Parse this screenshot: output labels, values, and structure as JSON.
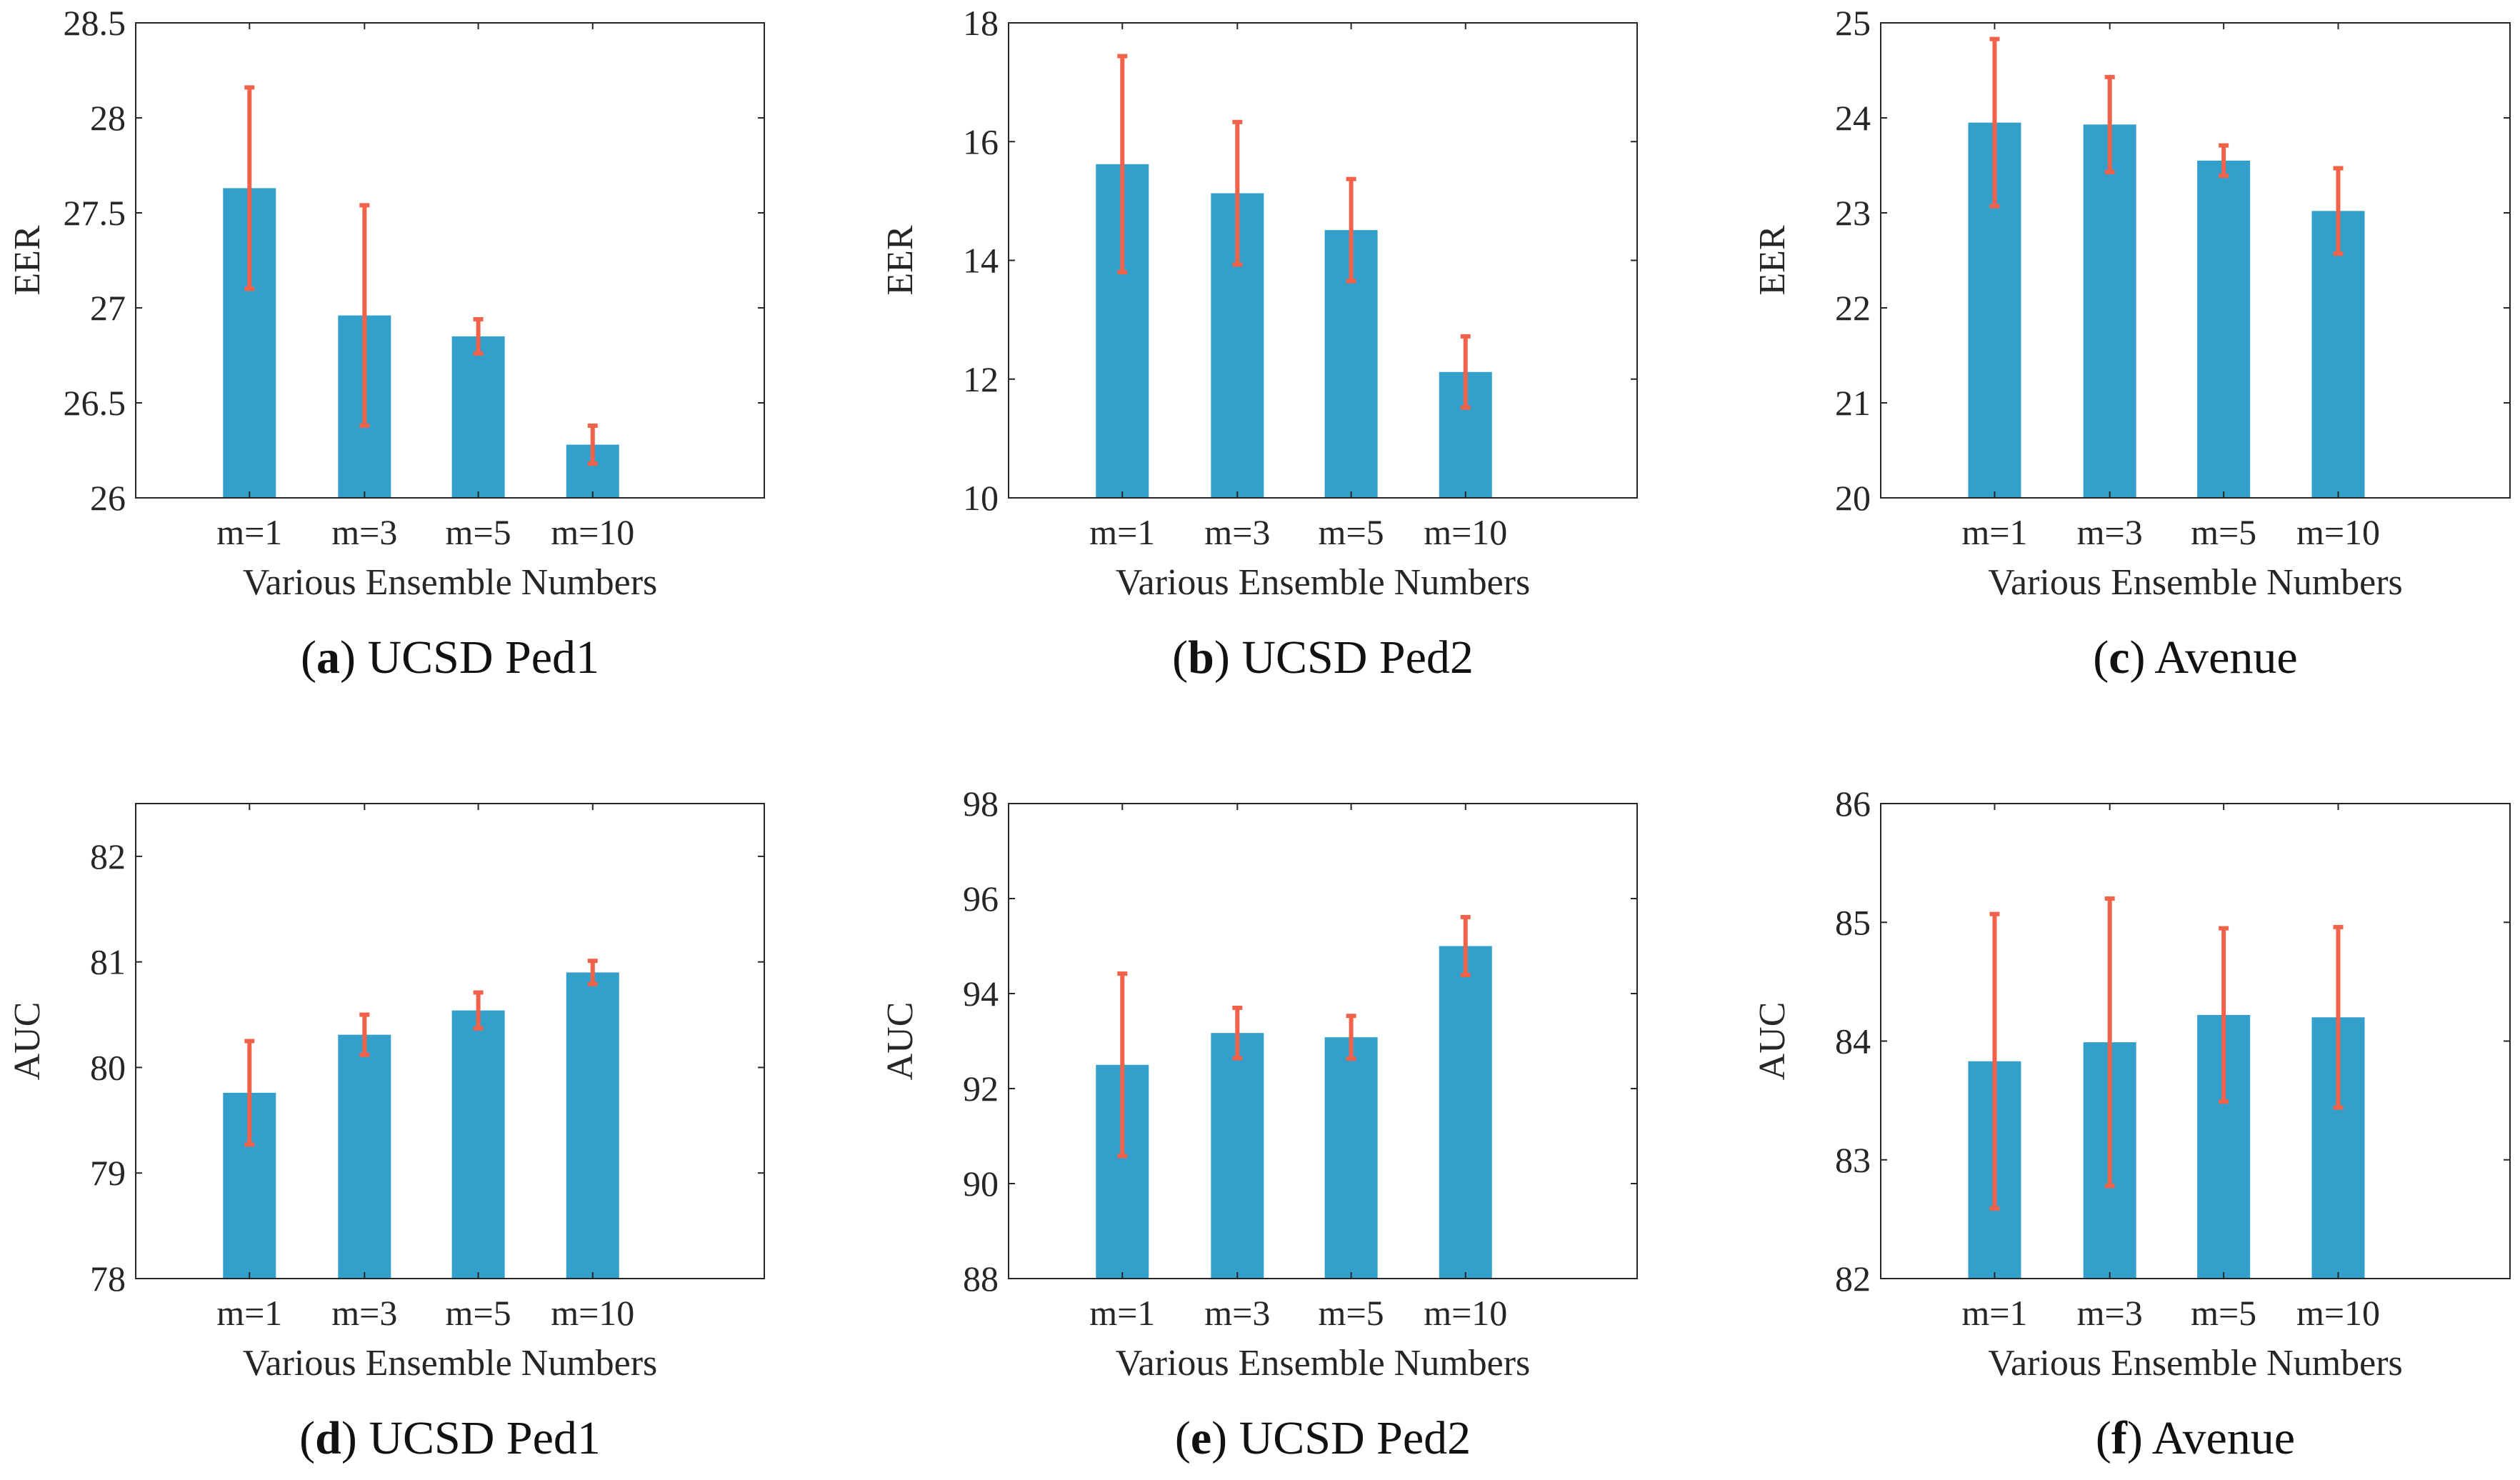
{
  "chart_data": [
    {
      "type": "bar",
      "panel": "a",
      "caption_letter": "a",
      "caption_title": "UCSD Ped1",
      "xlabel": "Various Ensemble Numbers",
      "ylabel": "EER",
      "categories": [
        "m=1",
        "m=3",
        "m=5",
        "m=10"
      ],
      "values": [
        27.63,
        26.96,
        26.85,
        26.28
      ],
      "errors": [
        0.53,
        0.58,
        0.09,
        0.1
      ],
      "ylim": [
        26,
        28.5
      ],
      "yticks": [
        26,
        26.5,
        27,
        27.5,
        28,
        28.5
      ],
      "ytick_labels": [
        "26",
        "26.5",
        "27",
        "27.5",
        "28",
        "28.5"
      ]
    },
    {
      "type": "bar",
      "panel": "b",
      "caption_letter": "b",
      "caption_title": "UCSD Ped2",
      "xlabel": "Various Ensemble Numbers",
      "ylabel": "EER",
      "categories": [
        "m=1",
        "m=3",
        "m=5",
        "m=10"
      ],
      "values": [
        15.62,
        15.13,
        14.51,
        12.12
      ],
      "errors": [
        1.82,
        1.2,
        0.86,
        0.6
      ],
      "ylim": [
        10,
        18
      ],
      "yticks": [
        10,
        12,
        14,
        16,
        18
      ],
      "ytick_labels": [
        "10",
        "12",
        "14",
        "16",
        "18"
      ]
    },
    {
      "type": "bar",
      "panel": "c",
      "caption_letter": "c",
      "caption_title": "Avenue",
      "xlabel": "Various Ensemble Numbers",
      "ylabel": "EER",
      "categories": [
        "m=1",
        "m=3",
        "m=5",
        "m=10"
      ],
      "values": [
        23.95,
        23.93,
        23.55,
        23.02
      ],
      "errors": [
        0.88,
        0.5,
        0.16,
        0.45
      ],
      "ylim": [
        20,
        25
      ],
      "yticks": [
        20,
        21,
        22,
        23,
        24,
        25
      ],
      "ytick_labels": [
        "20",
        "21",
        "22",
        "23",
        "24",
        "25"
      ]
    },
    {
      "type": "bar",
      "panel": "d",
      "caption_letter": "d",
      "caption_title": "UCSD Ped1",
      "xlabel": "Various Ensemble Numbers",
      "ylabel": "AUC",
      "categories": [
        "m=1",
        "m=3",
        "m=5",
        "m=10"
      ],
      "values": [
        79.76,
        80.31,
        80.54,
        80.9
      ],
      "errors": [
        0.49,
        0.19,
        0.17,
        0.11
      ],
      "ylim": [
        78,
        82.5
      ],
      "yticks": [
        78,
        79,
        80,
        81,
        82
      ],
      "ytick_labels": [
        "78",
        "79",
        "80",
        "81",
        "82"
      ]
    },
    {
      "type": "bar",
      "panel": "e",
      "caption_letter": "e",
      "caption_title": "UCSD Ped2",
      "xlabel": "Various Ensemble Numbers",
      "ylabel": "AUC",
      "categories": [
        "m=1",
        "m=3",
        "m=5",
        "m=10"
      ],
      "values": [
        92.5,
        93.17,
        93.08,
        95.0
      ],
      "errors": [
        1.92,
        0.53,
        0.45,
        0.61
      ],
      "ylim": [
        88,
        98
      ],
      "yticks": [
        88,
        90,
        92,
        94,
        96,
        98
      ],
      "ytick_labels": [
        "88",
        "90",
        "92",
        "94",
        "96",
        "98"
      ]
    },
    {
      "type": "bar",
      "panel": "f",
      "caption_letter": "f",
      "caption_title": "Avenue",
      "xlabel": "Various Ensemble Numbers",
      "ylabel": "AUC",
      "categories": [
        "m=1",
        "m=3",
        "m=5",
        "m=10"
      ],
      "values": [
        83.83,
        83.99,
        84.22,
        84.2
      ],
      "errors": [
        1.24,
        1.21,
        0.73,
        0.76
      ],
      "ylim": [
        82,
        86
      ],
      "yticks": [
        82,
        83,
        84,
        85,
        86
      ],
      "ytick_labels": [
        "82",
        "83",
        "84",
        "85",
        "86"
      ]
    }
  ],
  "colors": {
    "bar": "#33a0cb",
    "error": "#f0624a",
    "axis": "#262626"
  }
}
